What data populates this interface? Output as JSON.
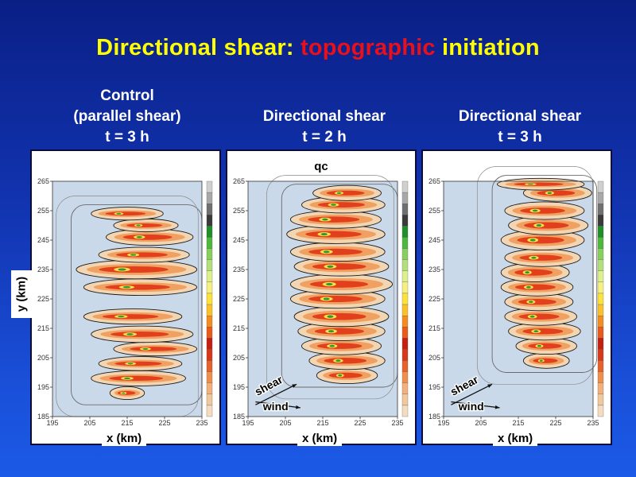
{
  "slide": {
    "title_part1": "Directional shear: ",
    "title_highlight": "topographic",
    "title_part2": " initiation",
    "ylabel": "y (km)",
    "colors": {
      "title": "#ffff00",
      "highlight": "#e8101a",
      "background": "#1235b2"
    }
  },
  "chart_data": [
    {
      "type": "heatmap",
      "title_lines": [
        "Control",
        "(parallel shear)",
        "t = 3 h"
      ],
      "xlabel": "x (km)",
      "ylabel": "y (km)",
      "xlim": [
        195,
        235
      ],
      "ylim": [
        185,
        265
      ],
      "xticks": [
        "195",
        "205",
        "215",
        "225",
        "235"
      ],
      "yticks": [
        "185",
        "195",
        "205",
        "215",
        "225",
        "235",
        "245",
        "255",
        "265"
      ],
      "field_label": "",
      "bands": [
        {
          "y": 193,
          "x": [
            211,
            219
          ],
          "w": 1.6
        },
        {
          "y": 198,
          "x": [
            206,
            230
          ],
          "w": 2.0
        },
        {
          "y": 203,
          "x": [
            208,
            229
          ],
          "w": 1.8
        },
        {
          "y": 208,
          "x": [
            212,
            233
          ],
          "w": 1.8
        },
        {
          "y": 213,
          "x": [
            206,
            232
          ],
          "w": 2.2
        },
        {
          "y": 219,
          "x": [
            204,
            229
          ],
          "w": 2.0
        },
        {
          "y": 229,
          "x": [
            204,
            233
          ],
          "w": 2.2
        },
        {
          "y": 235,
          "x": [
            202,
            233
          ],
          "w": 2.6
        },
        {
          "y": 240,
          "x": [
            208,
            231
          ],
          "w": 2.0
        },
        {
          "y": 246,
          "x": [
            210,
            232
          ],
          "w": 2.2
        },
        {
          "y": 250,
          "x": [
            212,
            228
          ],
          "w": 1.6
        },
        {
          "y": 254,
          "x": [
            206,
            224
          ],
          "w": 1.6
        }
      ],
      "annotations": []
    },
    {
      "type": "heatmap",
      "title_lines": [
        "Directional shear",
        "t = 2 h"
      ],
      "xlabel": "x (km)",
      "ylabel": "",
      "xlim": [
        195,
        235
      ],
      "ylim": [
        185,
        265
      ],
      "xticks": [
        "195",
        "205",
        "215",
        "225",
        "235"
      ],
      "yticks": [
        "185",
        "195",
        "205",
        "215",
        "225",
        "235",
        "245",
        "255",
        "265"
      ],
      "field_label": "qc",
      "bands": [
        {
          "y": 199,
          "x": [
            214,
            229
          ],
          "w": 2.2
        },
        {
          "y": 204,
          "x": [
            212,
            231
          ],
          "w": 2.4
        },
        {
          "y": 209,
          "x": [
            210,
            230
          ],
          "w": 2.4
        },
        {
          "y": 214,
          "x": [
            209,
            231
          ],
          "w": 2.6
        },
        {
          "y": 219,
          "x": [
            208,
            232
          ],
          "w": 2.8
        },
        {
          "y": 225,
          "x": [
            207,
            231
          ],
          "w": 2.6
        },
        {
          "y": 230,
          "x": [
            207,
            233
          ],
          "w": 2.8
        },
        {
          "y": 236,
          "x": [
            208,
            232
          ],
          "w": 2.6
        },
        {
          "y": 241,
          "x": [
            207,
            231
          ],
          "w": 2.6
        },
        {
          "y": 247,
          "x": [
            206,
            231
          ],
          "w": 2.6
        },
        {
          "y": 252,
          "x": [
            207,
            230
          ],
          "w": 2.4
        },
        {
          "y": 257,
          "x": [
            210,
            231
          ],
          "w": 2.2
        },
        {
          "y": 261,
          "x": [
            213,
            230
          ],
          "w": 2.0
        }
      ],
      "annotations": [
        {
          "text": "shear",
          "tx": 197.5,
          "ty": 192,
          "rot": -28,
          "ax1": [
            197,
            189
          ],
          "ax2": [
            208,
            196
          ]
        },
        {
          "text": "wind",
          "tx": 199,
          "ty": 187.2,
          "rot": 0,
          "ax1": [
            197,
            190
          ],
          "ax2": [
            209,
            188
          ]
        }
      ]
    },
    {
      "type": "heatmap",
      "title_lines": [
        "Directional shear",
        "t = 3 h"
      ],
      "xlabel": "x (km)",
      "ylabel": "",
      "xlim": [
        195,
        235
      ],
      "ylim": [
        185,
        265
      ],
      "xticks": [
        "195",
        "205",
        "215",
        "225",
        "235"
      ],
      "yticks": [
        "185",
        "195",
        "205",
        "215",
        "225",
        "235",
        "245",
        "255",
        "265"
      ],
      "field_label": "",
      "bands": [
        {
          "y": 204,
          "x": [
            217,
            228
          ],
          "w": 2.0
        },
        {
          "y": 209,
          "x": [
            215,
            230
          ],
          "w": 2.2
        },
        {
          "y": 214,
          "x": [
            213,
            231
          ],
          "w": 2.4
        },
        {
          "y": 219,
          "x": [
            212,
            230
          ],
          "w": 2.4
        },
        {
          "y": 224,
          "x": [
            212,
            229
          ],
          "w": 2.4
        },
        {
          "y": 229,
          "x": [
            211,
            229
          ],
          "w": 2.4
        },
        {
          "y": 234,
          "x": [
            211,
            228
          ],
          "w": 2.6
        },
        {
          "y": 239,
          "x": [
            212,
            231
          ],
          "w": 2.4
        },
        {
          "y": 245,
          "x": [
            211,
            232
          ],
          "w": 2.8
        },
        {
          "y": 250,
          "x": [
            213,
            233
          ],
          "w": 2.6
        },
        {
          "y": 255,
          "x": [
            212,
            232
          ],
          "w": 2.4
        },
        {
          "y": 261,
          "x": [
            217,
            234
          ],
          "w": 2.2
        },
        {
          "y": 264,
          "x": [
            210,
            232
          ],
          "w": 1.4
        }
      ],
      "annotations": [
        {
          "text": "shear",
          "tx": 197.5,
          "ty": 192,
          "rot": -28,
          "ax1": [
            197,
            189
          ],
          "ax2": [
            208,
            196
          ]
        },
        {
          "text": "wind",
          "tx": 199,
          "ty": 187.2,
          "rot": 0,
          "ax1": [
            197,
            190
          ],
          "ax2": [
            210,
            188
          ]
        }
      ]
    }
  ]
}
